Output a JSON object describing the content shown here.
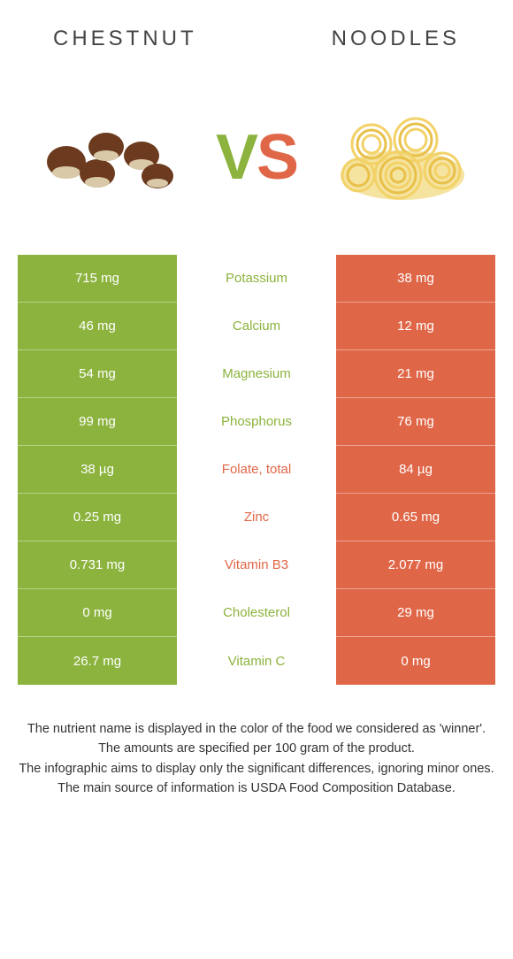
{
  "header": {
    "left_title": "Chestnut",
    "right_title": "Noodles"
  },
  "vs": {
    "v": "V",
    "s": "S"
  },
  "colors": {
    "left_bg": "#8bb33d",
    "right_bg": "#e06648",
    "left_text": "#8bb33d",
    "right_text": "#e06648"
  },
  "rows": [
    {
      "left": "715 mg",
      "label": "Potassium",
      "right": "38 mg",
      "winner": "left"
    },
    {
      "left": "46 mg",
      "label": "Calcium",
      "right": "12 mg",
      "winner": "left"
    },
    {
      "left": "54 mg",
      "label": "Magnesium",
      "right": "21 mg",
      "winner": "left"
    },
    {
      "left": "99 mg",
      "label": "Phosphorus",
      "right": "76 mg",
      "winner": "left"
    },
    {
      "left": "38 µg",
      "label": "Folate, total",
      "right": "84 µg",
      "winner": "right"
    },
    {
      "left": "0.25 mg",
      "label": "Zinc",
      "right": "0.65 mg",
      "winner": "right"
    },
    {
      "left": "0.731 mg",
      "label": "Vitamin B3",
      "right": "2.077 mg",
      "winner": "right"
    },
    {
      "left": "0 mg",
      "label": "Cholesterol",
      "right": "29 mg",
      "winner": "left"
    },
    {
      "left": "26.7 mg",
      "label": "Vitamin C",
      "right": "0 mg",
      "winner": "left"
    }
  ],
  "footer": {
    "l1": "The nutrient name is displayed in the color of the food we considered as 'winner'.",
    "l2": "The amounts are specified per 100 gram of the product.",
    "l3": "The infographic aims to display only the significant differences, ignoring minor ones.",
    "l4": "The main source of information is USDA Food Composition Database."
  }
}
